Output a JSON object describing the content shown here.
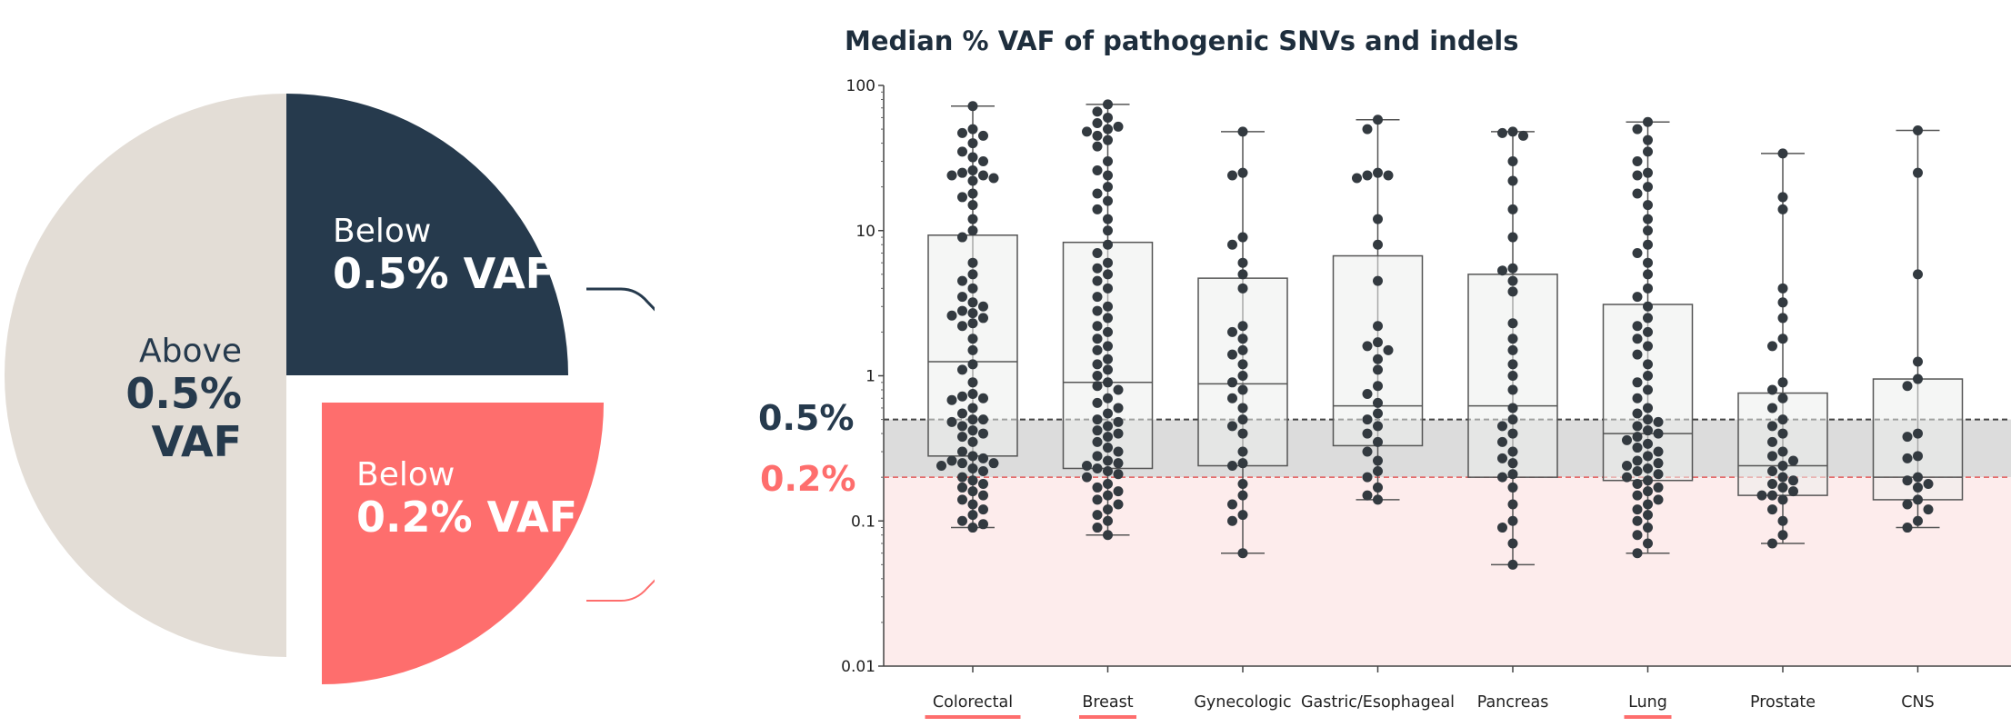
{
  "pie": {
    "segments": [
      {
        "name": "Above 0.5% VAF",
        "line1": "Above",
        "line2": "0.5% VAF",
        "color": "#e3ddd6"
      },
      {
        "name": "Below 0.5% VAF",
        "line1": "Below",
        "line2": "0.5% VAF",
        "color": "#263a4d"
      },
      {
        "name": "Below 0.2% VAF",
        "line1": "Below",
        "line2": "0.2% VAF",
        "color": "#fe6e6d"
      }
    ]
  },
  "thresholds": {
    "t05_label": "0.5%",
    "t02_label": "0.2%",
    "t05_color": "#263a4d",
    "t02_color": "#fe6e6d"
  },
  "chart_data": {
    "type": "box",
    "title": "Median % VAF of pathogenic SNVs and indels",
    "y_scale": "log",
    "ylim": [
      0.01,
      100
    ],
    "y_ticks": [
      {
        "value": 100,
        "label": "100"
      },
      {
        "value": 10,
        "label": "10"
      },
      {
        "value": 1,
        "label": "1"
      },
      {
        "value": 0.1,
        "label": "0.1"
      },
      {
        "value": 0.01,
        "label": "0.01"
      }
    ],
    "reference_lines": [
      {
        "value": 0.5,
        "style": "dashed",
        "color": "#444444"
      },
      {
        "value": 0.2,
        "style": "dashed",
        "color": "#e05a5a"
      }
    ],
    "categories": [
      {
        "name": "Colorectal",
        "underlined": true,
        "min": 0.09,
        "q1": 0.28,
        "median": 1.25,
        "q3": 9.3,
        "max": 72,
        "points": [
          72,
          50,
          47,
          45,
          40,
          35,
          32,
          30,
          26,
          25,
          24,
          24,
          23,
          22,
          18,
          17,
          15,
          12,
          10,
          9,
          6,
          5,
          4.5,
          4,
          3.5,
          3.2,
          3,
          2.8,
          2.7,
          2.6,
          2.5,
          2.3,
          2.2,
          1.8,
          1.5,
          1.2,
          1.1,
          0.9,
          0.75,
          0.72,
          0.7,
          0.68,
          0.6,
          0.55,
          0.5,
          0.5,
          0.48,
          0.45,
          0.42,
          0.4,
          0.38,
          0.35,
          0.3,
          0.28,
          0.27,
          0.26,
          0.25,
          0.25,
          0.24,
          0.23,
          0.22,
          0.2,
          0.19,
          0.18,
          0.17,
          0.16,
          0.15,
          0.14,
          0.13,
          0.12,
          0.11,
          0.1,
          0.095,
          0.09
        ]
      },
      {
        "name": "Breast",
        "underlined": true,
        "min": 0.08,
        "q1": 0.23,
        "median": 0.9,
        "q3": 8.3,
        "max": 74,
        "points": [
          74,
          66,
          60,
          55,
          52,
          50,
          48,
          45,
          42,
          38,
          30,
          26,
          24,
          20,
          18,
          16,
          14,
          12,
          10,
          8,
          7,
          6,
          5.5,
          5,
          4.5,
          4,
          3.5,
          3,
          2.8,
          2.5,
          2.2,
          2,
          1.8,
          1.6,
          1.5,
          1.3,
          1.2,
          1.1,
          1,
          0.9,
          0.85,
          0.8,
          0.7,
          0.65,
          0.6,
          0.55,
          0.5,
          0.48,
          0.45,
          0.42,
          0.4,
          0.38,
          0.35,
          0.32,
          0.3,
          0.28,
          0.26,
          0.25,
          0.24,
          0.23,
          0.22,
          0.21,
          0.2,
          0.18,
          0.17,
          0.16,
          0.15,
          0.14,
          0.13,
          0.12,
          0.11,
          0.1,
          0.09,
          0.08
        ]
      },
      {
        "name": "Gynecologic",
        "underlined": false,
        "min": 0.06,
        "q1": 0.24,
        "median": 0.88,
        "q3": 4.7,
        "max": 48,
        "points": [
          48,
          25,
          24,
          9,
          8,
          6,
          5,
          4,
          2.2,
          2,
          1.8,
          1.5,
          1.4,
          1.2,
          1,
          0.9,
          0.8,
          0.7,
          0.6,
          0.5,
          0.45,
          0.4,
          0.3,
          0.25,
          0.24,
          0.18,
          0.15,
          0.13,
          0.11,
          0.1,
          0.06
        ]
      },
      {
        "name": "Gastric/Esophageal",
        "underlined": false,
        "min": 0.14,
        "q1": 0.33,
        "median": 0.62,
        "q3": 6.7,
        "max": 58,
        "points": [
          58,
          50,
          25,
          24,
          24,
          23,
          12,
          8,
          4.5,
          2.2,
          1.7,
          1.6,
          1.5,
          1.3,
          1.1,
          0.85,
          0.75,
          0.65,
          0.55,
          0.5,
          0.45,
          0.4,
          0.35,
          0.3,
          0.26,
          0.22,
          0.2,
          0.17,
          0.15,
          0.14
        ]
      },
      {
        "name": "Pancreas",
        "underlined": false,
        "min": 0.05,
        "q1": 0.2,
        "median": 0.62,
        "q3": 5,
        "max": 48,
        "points": [
          48,
          47,
          45,
          30,
          22,
          14,
          9,
          5.5,
          5.3,
          4.5,
          3.8,
          2.3,
          1.8,
          1.5,
          1.2,
          1,
          0.8,
          0.6,
          0.5,
          0.45,
          0.4,
          0.35,
          0.3,
          0.27,
          0.25,
          0.21,
          0.2,
          0.17,
          0.13,
          0.1,
          0.09,
          0.07,
          0.05
        ]
      },
      {
        "name": "Lung",
        "underlined": true,
        "min": 0.06,
        "q1": 0.19,
        "median": 0.4,
        "q3": 3.1,
        "max": 56,
        "points": [
          56,
          50,
          42,
          35,
          30,
          25,
          24,
          20,
          18,
          15,
          12,
          10,
          8,
          7,
          6,
          5,
          4,
          3.5,
          3,
          2.5,
          2.2,
          2,
          1.8,
          1.6,
          1.4,
          1.2,
          1,
          0.9,
          0.8,
          0.7,
          0.6,
          0.55,
          0.5,
          0.48,
          0.45,
          0.42,
          0.4,
          0.38,
          0.36,
          0.34,
          0.32,
          0.3,
          0.28,
          0.26,
          0.25,
          0.24,
          0.23,
          0.22,
          0.21,
          0.2,
          0.19,
          0.18,
          0.17,
          0.16,
          0.15,
          0.14,
          0.13,
          0.12,
          0.11,
          0.1,
          0.09,
          0.08,
          0.07,
          0.06
        ]
      },
      {
        "name": "Prostate",
        "underlined": false,
        "min": 0.07,
        "q1": 0.15,
        "median": 0.24,
        "q3": 0.76,
        "max": 34,
        "points": [
          34,
          17,
          14,
          4,
          3.2,
          2.5,
          1.8,
          1.6,
          0.9,
          0.8,
          0.7,
          0.6,
          0.5,
          0.45,
          0.4,
          0.35,
          0.3,
          0.28,
          0.26,
          0.24,
          0.22,
          0.2,
          0.19,
          0.18,
          0.17,
          0.16,
          0.15,
          0.15,
          0.14,
          0.12,
          0.1,
          0.08,
          0.07
        ]
      },
      {
        "name": "CNS",
        "underlined": false,
        "min": 0.09,
        "q1": 0.14,
        "median": 0.2,
        "q3": 0.95,
        "max": 49,
        "points": [
          49,
          25,
          5,
          1.25,
          0.95,
          0.85,
          0.4,
          0.38,
          0.28,
          0.27,
          0.2,
          0.19,
          0.18,
          0.17,
          0.14,
          0.13,
          0.12,
          0.1,
          0.09
        ]
      }
    ],
    "colors": {
      "box_fill": "#eceeed",
      "box_stroke": "#555555",
      "point": "#333a40",
      "underline": "#fe6e6d",
      "shade_05": "#dcdcdc",
      "shade_02": "#fdecec"
    }
  }
}
